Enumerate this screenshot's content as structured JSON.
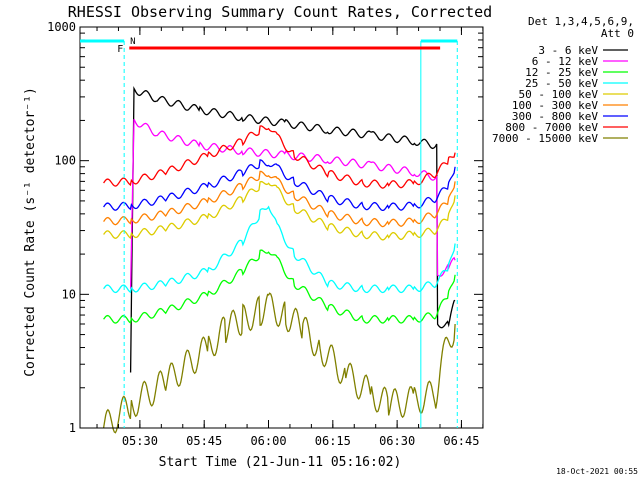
{
  "chart_data": {
    "type": "line",
    "title": "RHESSI Observing Summary Count Rates, Corrected",
    "xlabel": "Start Time (21-Jun-11 05:16:02)",
    "ylabel": "Corrected Count Rate (s⁻¹ detector⁻¹)",
    "yscale": "log",
    "ylim": [
      1,
      1000
    ],
    "xlim_minutes_after_start": [
      0,
      94
    ],
    "x_tick_labels": [
      "05:30",
      "05:45",
      "06:00",
      "06:15",
      "06:30",
      "06:45"
    ],
    "x_tick_minutes_after_start": [
      13.97,
      28.97,
      43.97,
      58.97,
      73.97,
      88.97
    ],
    "y_tick_labels": [
      "1",
      "10",
      "100",
      "1000"
    ],
    "y_tick_values": [
      1,
      10,
      100,
      1000
    ],
    "legend": {
      "placement": "right",
      "header": [
        "Det 1,3,4,5,6,9,",
        "Att 0"
      ]
    },
    "flags": [
      {
        "label": "F",
        "color": "#ff0000",
        "start_minute": 11.5,
        "end_minute": 84
      },
      {
        "label": "N",
        "color": "#00ffff"
      }
    ],
    "series": [
      {
        "name": "3 - 6 keV",
        "color": "#000000",
        "x": [
          11.8,
          12.6,
          18,
          28,
          38,
          48,
          58,
          68,
          78,
          83.2,
          83.4,
          86,
          87.5
        ],
        "y": [
          2.6,
          340,
          290,
          240,
          210,
          190,
          170,
          155,
          140,
          130,
          6,
          6,
          9
        ]
      },
      {
        "name": "6 - 12 keV",
        "color": "#ff00ff",
        "x": [
          11.8,
          12.6,
          18,
          28,
          38,
          48,
          58,
          68,
          78,
          83.2,
          83.4,
          86,
          87.5
        ],
        "y": [
          11,
          200,
          160,
          130,
          118,
          110,
          102,
          92,
          82,
          75,
          14,
          16,
          18
        ]
      },
      {
        "name": "12 - 25 keV",
        "color": "#00ff00",
        "x": [
          5.5,
          12,
          20,
          30,
          38,
          42,
          44,
          46,
          50,
          58,
          66,
          72,
          78,
          83,
          86,
          87.5
        ],
        "y": [
          6.5,
          6.5,
          7.5,
          10,
          15,
          20,
          22,
          18,
          12,
          8,
          6.5,
          6.5,
          6.5,
          7,
          10,
          14
        ]
      },
      {
        "name": "25 - 50 keV",
        "color": "#00ffff",
        "x": [
          5.5,
          12,
          20,
          30,
          38,
          42,
          44,
          46,
          50,
          58,
          66,
          72,
          78,
          83,
          86,
          87.5
        ],
        "y": [
          11,
          11,
          12,
          15,
          25,
          40,
          48,
          32,
          20,
          12,
          11,
          11,
          11,
          12,
          16,
          24
        ]
      },
      {
        "name": "50 - 100 keV",
        "color": "#ddcc00",
        "x": [
          5.5,
          12,
          20,
          30,
          38,
          42,
          44,
          46,
          50,
          58,
          66,
          72,
          78,
          83,
          86,
          87.5
        ],
        "y": [
          28,
          28,
          31,
          38,
          52,
          65,
          72,
          60,
          44,
          32,
          28,
          27,
          28,
          30,
          38,
          55
        ]
      },
      {
        "name": "100 - 300 keV",
        "color": "#ff8000",
        "x": [
          5.5,
          12,
          20,
          30,
          38,
          42,
          44,
          46,
          50,
          58,
          66,
          72,
          78,
          83,
          86,
          87.5
        ],
        "y": [
          35,
          36,
          40,
          50,
          65,
          78,
          82,
          70,
          55,
          40,
          35,
          34,
          35,
          40,
          50,
          70
        ]
      },
      {
        "name": "300 - 800 keV",
        "color": "#0000ff",
        "x": [
          5.5,
          12,
          20,
          30,
          38,
          42,
          44,
          46,
          50,
          58,
          66,
          72,
          78,
          83,
          86,
          87.5
        ],
        "y": [
          45,
          46,
          52,
          65,
          82,
          95,
          98,
          88,
          70,
          52,
          46,
          45,
          46,
          52,
          65,
          90
        ]
      },
      {
        "name": "800 - 7000 keV",
        "color": "#ff0000",
        "x": [
          5.5,
          12,
          20,
          30,
          38,
          42,
          44,
          46,
          50,
          58,
          66,
          72,
          78,
          83,
          86,
          87.5
        ],
        "y": [
          68,
          70,
          82,
          110,
          140,
          170,
          185,
          150,
          110,
          80,
          68,
          66,
          68,
          80,
          100,
          115
        ]
      },
      {
        "name": "7000 - 15000 keV",
        "color": "#808000",
        "x": [
          5.5,
          12,
          20,
          30,
          34,
          38,
          42,
          44,
          48,
          52,
          56,
          62,
          68,
          72,
          78,
          83,
          85,
          87.5
        ],
        "y": [
          1.0,
          1.5,
          2.2,
          4.0,
          5.5,
          6.5,
          7.5,
          8.0,
          7.0,
          5.5,
          4.0,
          2.5,
          1.8,
          1.5,
          1.6,
          1.8,
          3.5,
          6.0
        ]
      }
    ]
  },
  "footer": {
    "timestamp": "18-Oct-2021 00:55"
  }
}
